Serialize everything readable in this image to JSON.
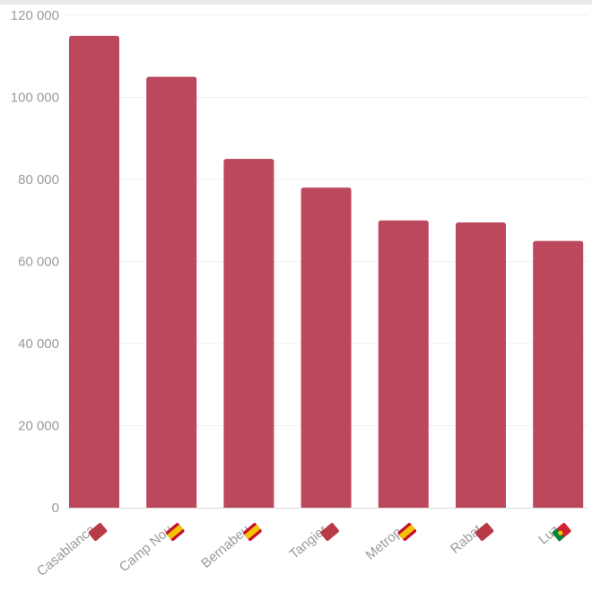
{
  "chart_data": {
    "type": "bar",
    "title": "",
    "xlabel": "",
    "ylabel": "",
    "categories": [
      "Casablanca",
      "Camp Nou",
      "Bernabeu",
      "Tangier",
      "Metrop.",
      "Rabat",
      "Luz"
    ],
    "flags": [
      "morocco-flag-icon",
      "spain-flag-icon",
      "spain-flag-icon",
      "morocco-flag-icon",
      "spain-flag-icon",
      "morocco-flag-icon",
      "portugal-flag-icon"
    ],
    "values": [
      115000,
      105000,
      85000,
      78000,
      70000,
      69500,
      65000
    ],
    "ylim": [
      0,
      120000
    ],
    "yticks": [
      0,
      20000,
      40000,
      60000,
      80000,
      100000,
      120000
    ],
    "ytick_labels": [
      "0",
      "20 000",
      "40 000",
      "60 000",
      "80 000",
      "100 000",
      "120 000"
    ],
    "grid": true,
    "legend": "none",
    "colors": {
      "bar": "#bc485e",
      "grid": "#f0f0f0",
      "axis": "#dcdcdc",
      "tick_text": "#9a9a9a",
      "morocco_red": "#b73a46",
      "spain_red": "#c8102e",
      "spain_yellow": "#f5c400",
      "portugal_green": "#00843d",
      "portugal_red": "#d3202f"
    }
  }
}
